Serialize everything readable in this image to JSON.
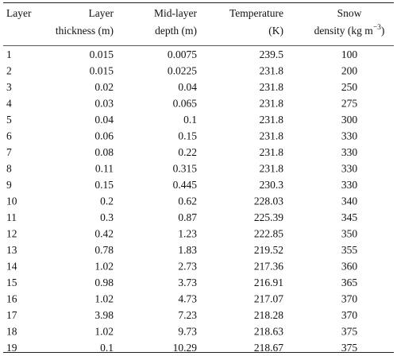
{
  "table": {
    "header": [
      [
        "Layer"
      ],
      [
        "Layer",
        "thickness (m)"
      ],
      [
        "Mid-layer",
        "depth (m)"
      ],
      [
        "Temperature",
        "(K)"
      ],
      [
        "Snow",
        [
          "density (kg m",
          "−3",
          ")"
        ]
      ]
    ],
    "rows": [
      [
        1,
        0.015,
        0.0075,
        239.5,
        100
      ],
      [
        2,
        0.015,
        0.0225,
        231.8,
        200
      ],
      [
        3,
        0.02,
        0.04,
        231.8,
        250
      ],
      [
        4,
        0.03,
        0.065,
        231.8,
        275
      ],
      [
        5,
        0.04,
        0.1,
        231.8,
        300
      ],
      [
        6,
        0.06,
        0.15,
        231.8,
        330
      ],
      [
        7,
        0.08,
        0.22,
        231.8,
        330
      ],
      [
        8,
        0.11,
        0.315,
        231.8,
        330
      ],
      [
        9,
        0.15,
        0.445,
        230.3,
        330
      ],
      [
        10,
        0.2,
        0.62,
        228.03,
        340
      ],
      [
        11,
        0.3,
        0.87,
        225.39,
        345
      ],
      [
        12,
        0.42,
        1.23,
        222.85,
        350
      ],
      [
        13,
        0.78,
        1.83,
        219.52,
        355
      ],
      [
        14,
        1.02,
        2.73,
        217.36,
        360
      ],
      [
        15,
        0.98,
        3.73,
        216.91,
        365
      ],
      [
        16,
        1.02,
        4.73,
        217.07,
        370
      ],
      [
        17,
        3.98,
        7.23,
        218.28,
        370
      ],
      [
        18,
        1.02,
        9.73,
        218.63,
        375
      ],
      [
        19,
        0.1,
        10.29,
        218.67,
        375
      ]
    ]
  }
}
